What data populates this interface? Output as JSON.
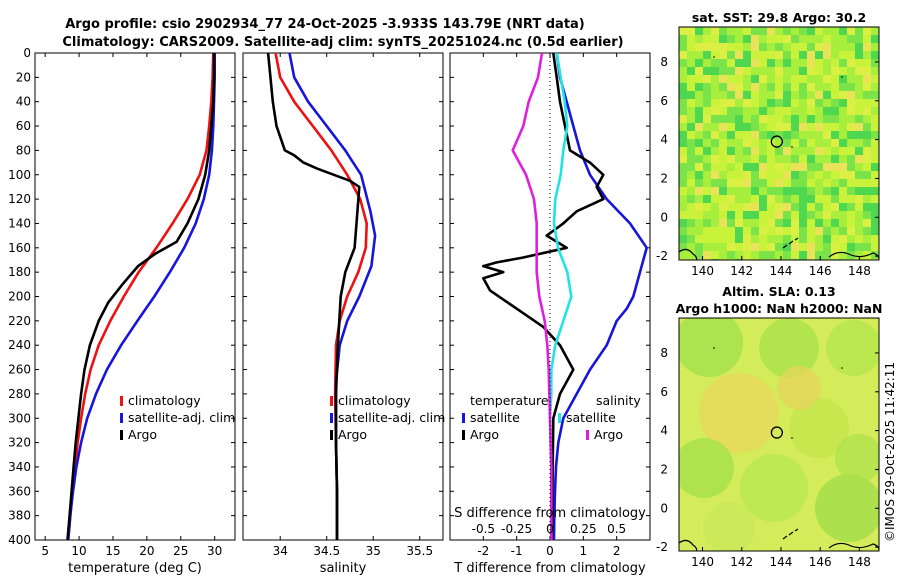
{
  "title_line1": "Argo profile: csio 2902934_77 24-Oct-2025 -3.933S 143.79E (NRT data)",
  "title_line2": "Climatology: CARS2009. Satellite-adj clim: synTS_20251024.nc (0.5d earlier)",
  "copyright": "©IMOS 29-Oct-2025 11:42:11",
  "colors": {
    "red": "#ee1111",
    "blue": "#1515dd",
    "black": "#000000",
    "cyan": "#22e3e3",
    "magenta": "#e01ee0"
  },
  "chart_data": [
    {
      "type": "line",
      "name": "temperature",
      "xlabel": "temperature (deg C)",
      "xlim": [
        3.5,
        33
      ],
      "ylim": [
        0,
        400
      ],
      "xticks": [
        5,
        10,
        15,
        20,
        25,
        30
      ],
      "yticks": [
        0,
        20,
        40,
        60,
        80,
        100,
        120,
        140,
        160,
        180,
        200,
        220,
        240,
        260,
        280,
        300,
        320,
        340,
        360,
        380,
        400
      ],
      "legend": {
        "position": "lower-right",
        "entries": [
          "climatology",
          "satellite-adj. clim",
          "Argo"
        ]
      },
      "series": [
        {
          "name": "climatology",
          "color": "#ee1111",
          "points": [
            [
              29.8,
              0
            ],
            [
              29.7,
              20
            ],
            [
              29.5,
              40
            ],
            [
              29.2,
              60
            ],
            [
              28.8,
              80
            ],
            [
              27.8,
              100
            ],
            [
              26,
              120
            ],
            [
              23.8,
              140
            ],
            [
              21.4,
              160
            ],
            [
              18.8,
              180
            ],
            [
              16.6,
              200
            ],
            [
              14.6,
              220
            ],
            [
              12.9,
              240
            ],
            [
              11.7,
              260
            ],
            [
              10.9,
              280
            ],
            [
              10.3,
              300
            ],
            [
              9.8,
              320
            ],
            [
              9.4,
              340
            ],
            [
              9,
              360
            ],
            [
              8.7,
              380
            ],
            [
              8.4,
              400
            ]
          ]
        },
        {
          "name": "satellite-adj. clim",
          "color": "#1515dd",
          "points": [
            [
              30,
              0
            ],
            [
              30,
              20
            ],
            [
              29.9,
              40
            ],
            [
              29.8,
              60
            ],
            [
              29.6,
              80
            ],
            [
              29.2,
              100
            ],
            [
              28.4,
              120
            ],
            [
              27.2,
              140
            ],
            [
              25.5,
              160
            ],
            [
              23.4,
              180
            ],
            [
              21.1,
              200
            ],
            [
              18.6,
              220
            ],
            [
              16.2,
              240
            ],
            [
              14.1,
              260
            ],
            [
              12.5,
              280
            ],
            [
              11.2,
              300
            ],
            [
              10.3,
              320
            ],
            [
              9.6,
              340
            ],
            [
              9.1,
              360
            ],
            [
              8.7,
              380
            ],
            [
              8.4,
              400
            ]
          ]
        },
        {
          "name": "Argo",
          "color": "#000000",
          "points": [
            [
              29.9,
              0
            ],
            [
              29.9,
              20
            ],
            [
              29.8,
              40
            ],
            [
              29.5,
              60
            ],
            [
              29.2,
              80
            ],
            [
              28.6,
              100
            ],
            [
              27.6,
              120
            ],
            [
              26,
              140
            ],
            [
              24.4,
              155
            ],
            [
              21.2,
              165
            ],
            [
              18.7,
              175
            ],
            [
              16.4,
              190
            ],
            [
              14.3,
              205
            ],
            [
              12.9,
              220
            ],
            [
              11.6,
              240
            ],
            [
              10.8,
              260
            ],
            [
              10.3,
              280
            ],
            [
              9.9,
              300
            ],
            [
              9.5,
              320
            ],
            [
              9.2,
              340
            ],
            [
              8.9,
              360
            ],
            [
              8.6,
              380
            ],
            [
              8.3,
              400
            ]
          ]
        }
      ]
    },
    {
      "type": "line",
      "name": "salinity",
      "xlabel": "salinity",
      "xlim": [
        33.6,
        35.75
      ],
      "ylim": [
        0,
        400
      ],
      "xticks": [
        34,
        34.5,
        35,
        35.5
      ],
      "legend": {
        "position": "lower-right",
        "entries": [
          "climatology",
          "satellite-adj. clim",
          "Argo"
        ]
      },
      "series": [
        {
          "name": "climatology",
          "color": "#ee1111",
          "points": [
            [
              33.95,
              0
            ],
            [
              34,
              20
            ],
            [
              34.15,
              40
            ],
            [
              34.35,
              60
            ],
            [
              34.55,
              80
            ],
            [
              34.72,
              100
            ],
            [
              34.86,
              120
            ],
            [
              34.93,
              140
            ],
            [
              34.92,
              160
            ],
            [
              34.84,
              180
            ],
            [
              34.72,
              200
            ],
            [
              34.64,
              220
            ],
            [
              34.6,
              240
            ],
            [
              34.59,
              280
            ],
            [
              34.6,
              320
            ],
            [
              34.61,
              360
            ],
            [
              34.61,
              400
            ]
          ]
        },
        {
          "name": "satellite-adj. clim",
          "color": "#1515dd",
          "points": [
            [
              34.1,
              0
            ],
            [
              34.15,
              20
            ],
            [
              34.3,
              40
            ],
            [
              34.5,
              60
            ],
            [
              34.7,
              80
            ],
            [
              34.87,
              100
            ],
            [
              34.97,
              130
            ],
            [
              35.02,
              150
            ],
            [
              34.98,
              175
            ],
            [
              34.85,
              200
            ],
            [
              34.72,
              220
            ],
            [
              34.64,
              240
            ],
            [
              34.6,
              270
            ],
            [
              34.6,
              320
            ],
            [
              34.61,
              360
            ],
            [
              34.61,
              400
            ]
          ]
        },
        {
          "name": "Argo",
          "color": "#000000",
          "points": [
            [
              33.87,
              0
            ],
            [
              33.92,
              40
            ],
            [
              33.96,
              60
            ],
            [
              34.05,
              80
            ],
            [
              34.15,
              84
            ],
            [
              34.25,
              90
            ],
            [
              34.4,
              95
            ],
            [
              34.75,
              105
            ],
            [
              34.85,
              110
            ],
            [
              34.82,
              140
            ],
            [
              34.8,
              160
            ],
            [
              34.7,
              180
            ],
            [
              34.65,
              200
            ],
            [
              34.62,
              240
            ],
            [
              34.6,
              280
            ],
            [
              34.6,
              320
            ],
            [
              34.61,
              360
            ],
            [
              34.61,
              400
            ]
          ]
        }
      ]
    },
    {
      "type": "line",
      "name": "difference",
      "xlabel": "T difference from climatology",
      "x2label": "S difference from climatology",
      "xlim": [
        -3,
        3
      ],
      "s_xlim": [
        -0.75,
        0.75
      ],
      "ylim": [
        0,
        400
      ],
      "xticks": [
        -2,
        -1,
        0,
        1,
        2
      ],
      "s_xticks": [
        -0.5,
        -0.25,
        0,
        0.25,
        0.5
      ],
      "legend_headers": [
        "temperature",
        "salinity"
      ],
      "legend": {
        "position": "lower-right",
        "entries": [
          "satellite",
          "Argo",
          "satellite",
          "Argo"
        ]
      },
      "series": [
        {
          "name": "T satellite",
          "color": "#1515dd",
          "units": "T",
          "points": [
            [
              0.2,
              0
            ],
            [
              0.3,
              20
            ],
            [
              0.5,
              40
            ],
            [
              0.7,
              60
            ],
            [
              0.9,
              80
            ],
            [
              1.2,
              100
            ],
            [
              1.7,
              120
            ],
            [
              2.4,
              140
            ],
            [
              2.9,
              160
            ],
            [
              2.7,
              180
            ],
            [
              2.5,
              200
            ],
            [
              2.3,
              210
            ],
            [
              2,
              220
            ],
            [
              1.7,
              240
            ],
            [
              1.2,
              260
            ],
            [
              0.8,
              280
            ],
            [
              0.4,
              300
            ],
            [
              0.25,
              320
            ],
            [
              0.18,
              340
            ],
            [
              0.15,
              360
            ],
            [
              0.13,
              380
            ],
            [
              0.12,
              400
            ]
          ]
        },
        {
          "name": "T Argo",
          "color": "#000000",
          "units": "T",
          "points": [
            [
              0.1,
              0
            ],
            [
              0.2,
              20
            ],
            [
              0.3,
              40
            ],
            [
              0.45,
              60
            ],
            [
              0.6,
              80
            ],
            [
              1.2,
              90
            ],
            [
              1.6,
              100
            ],
            [
              1.4,
              110
            ],
            [
              1.6,
              120
            ],
            [
              0.8,
              130
            ],
            [
              0.4,
              140
            ],
            [
              -0.1,
              150
            ],
            [
              0.5,
              160
            ],
            [
              -0.8,
              168
            ],
            [
              -1.6,
              172
            ],
            [
              -2,
              175
            ],
            [
              -1.4,
              180
            ],
            [
              -2,
              185
            ],
            [
              -1.8,
              195
            ],
            [
              -1,
              210
            ],
            [
              -0.2,
              225
            ],
            [
              0.3,
              240
            ],
            [
              0.7,
              260
            ],
            [
              0.3,
              280
            ],
            [
              0.1,
              300
            ],
            [
              0.08,
              340
            ],
            [
              0.06,
              400
            ]
          ]
        },
        {
          "name": "S satellite",
          "color": "#22e3e3",
          "units": "S",
          "points": [
            [
              0.05,
              0
            ],
            [
              0.08,
              20
            ],
            [
              0.11,
              40
            ],
            [
              0.13,
              60
            ],
            [
              0.1,
              80
            ],
            [
              0.08,
              100
            ],
            [
              0.04,
              120
            ],
            [
              0.03,
              140
            ],
            [
              0.06,
              160
            ],
            [
              0.13,
              180
            ],
            [
              0.16,
              200
            ],
            [
              0.1,
              220
            ],
            [
              0.04,
              240
            ],
            [
              0.01,
              260
            ],
            [
              0.01,
              280
            ],
            [
              0,
              300
            ],
            [
              0.01,
              340
            ],
            [
              0.01,
              400
            ]
          ]
        },
        {
          "name": "S Argo",
          "color": "#e01ee0",
          "units": "S",
          "points": [
            [
              -0.06,
              0
            ],
            [
              -0.09,
              20
            ],
            [
              -0.16,
              40
            ],
            [
              -0.2,
              60
            ],
            [
              -0.28,
              80
            ],
            [
              -0.18,
              100
            ],
            [
              -0.12,
              120
            ],
            [
              -0.1,
              140
            ],
            [
              -0.1,
              160
            ],
            [
              -0.1,
              180
            ],
            [
              -0.08,
              200
            ],
            [
              -0.04,
              220
            ],
            [
              -0.02,
              240
            ],
            [
              -0.01,
              260
            ],
            [
              0,
              300
            ],
            [
              0.01,
              340
            ],
            [
              0.01,
              400
            ]
          ]
        }
      ]
    },
    {
      "type": "heatmap",
      "name": "sst-map",
      "title": "sat. SST: 29.8 Argo: 30.2",
      "xlim": [
        138.8,
        149
      ],
      "ylim": [
        -2.2,
        9.8
      ],
      "xticks": [
        140,
        142,
        144,
        146,
        148
      ],
      "yticks": [
        -2,
        0,
        2,
        4,
        6,
        8
      ],
      "marker": [
        143.79,
        3.9
      ]
    },
    {
      "type": "heatmap",
      "name": "sla-map",
      "title_line1": "Altim. SLA: 0.13",
      "title_line2": "Argo h1000: NaN h2000: NaN",
      "xlim": [
        138.8,
        149
      ],
      "ylim": [
        -2.2,
        9.8
      ],
      "xticks": [
        140,
        142,
        144,
        146,
        148
      ],
      "yticks": [
        -2,
        0,
        2,
        4,
        6,
        8
      ],
      "marker": [
        143.79,
        3.9
      ]
    }
  ]
}
